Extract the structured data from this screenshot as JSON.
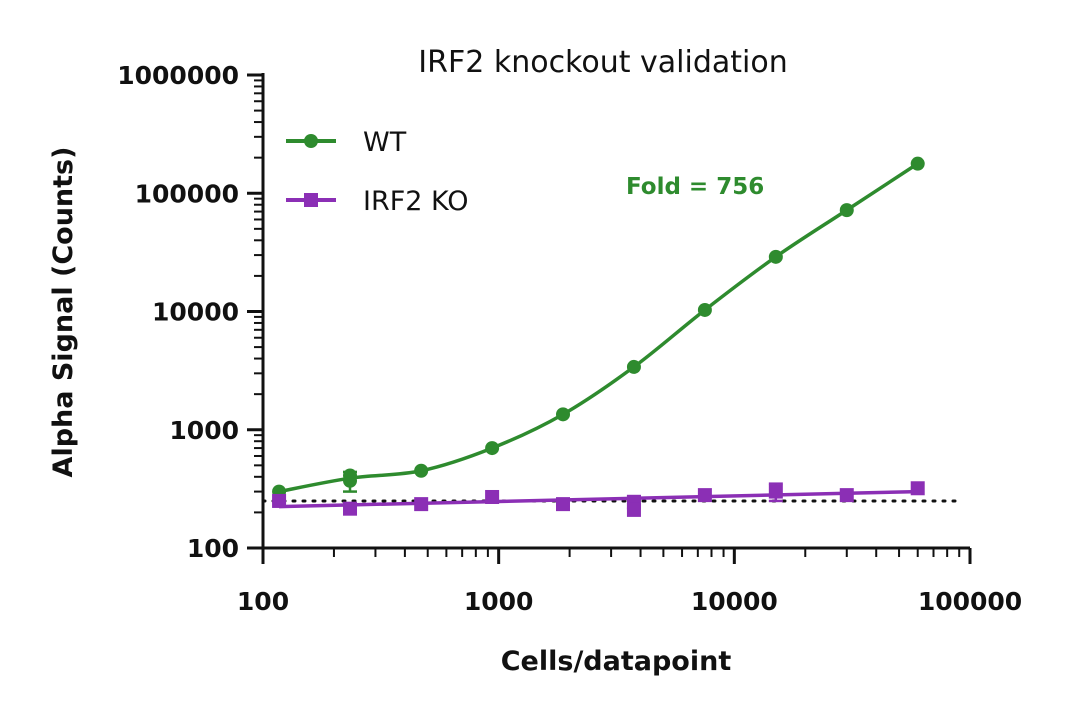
{
  "chart_data": {
    "type": "scatter",
    "title": "IRF2 knockout validation",
    "xlabel": "Cells/datapoint",
    "ylabel": "Alpha Signal (Counts)",
    "xscale": "log",
    "yscale": "log",
    "xlim": [
      100,
      100000
    ],
    "ylim": [
      100,
      1000000
    ],
    "x_ticks": [
      100,
      1000,
      10000,
      100000
    ],
    "x_tick_labels": [
      "100",
      "1000",
      "10000",
      "100000"
    ],
    "y_ticks": [
      100,
      1000,
      10000,
      100000,
      1000000
    ],
    "y_tick_labels": [
      "100",
      "1000",
      "10000",
      "100000",
      "1000000"
    ],
    "grid": false,
    "legend_position": "top-left",
    "series": [
      {
        "name": "WT",
        "color": "#2e8b2e",
        "marker": "circle",
        "fit": "sigmoidal",
        "points": [
          {
            "x": 117,
            "y": 300
          },
          {
            "x": 234,
            "y": 370,
            "err": 70
          },
          {
            "x": 234,
            "y": 410
          },
          {
            "x": 469,
            "y": 450
          },
          {
            "x": 938,
            "y": 700
          },
          {
            "x": 1875,
            "y": 1350
          },
          {
            "x": 3750,
            "y": 3400
          },
          {
            "x": 7500,
            "y": 10300
          },
          {
            "x": 15000,
            "y": 29000
          },
          {
            "x": 30000,
            "y": 72000
          },
          {
            "x": 60000,
            "y": 178000
          }
        ]
      },
      {
        "name": "IRF2 KO",
        "color": "#8b2fb5",
        "marker": "square",
        "fit": "line",
        "points": [
          {
            "x": 117,
            "y": 250
          },
          {
            "x": 234,
            "y": 215
          },
          {
            "x": 469,
            "y": 235
          },
          {
            "x": 938,
            "y": 270
          },
          {
            "x": 1875,
            "y": 235
          },
          {
            "x": 3750,
            "y": 245,
            "err": 30
          },
          {
            "x": 3750,
            "y": 210
          },
          {
            "x": 7500,
            "y": 280
          },
          {
            "x": 15000,
            "y": 300,
            "err": 50
          },
          {
            "x": 30000,
            "y": 280
          },
          {
            "x": 60000,
            "y": 320
          }
        ]
      }
    ],
    "baseline": {
      "y": 250,
      "style": "dotted"
    },
    "annotation": {
      "text": "Fold = 756",
      "color": "#2e8b2e"
    }
  }
}
